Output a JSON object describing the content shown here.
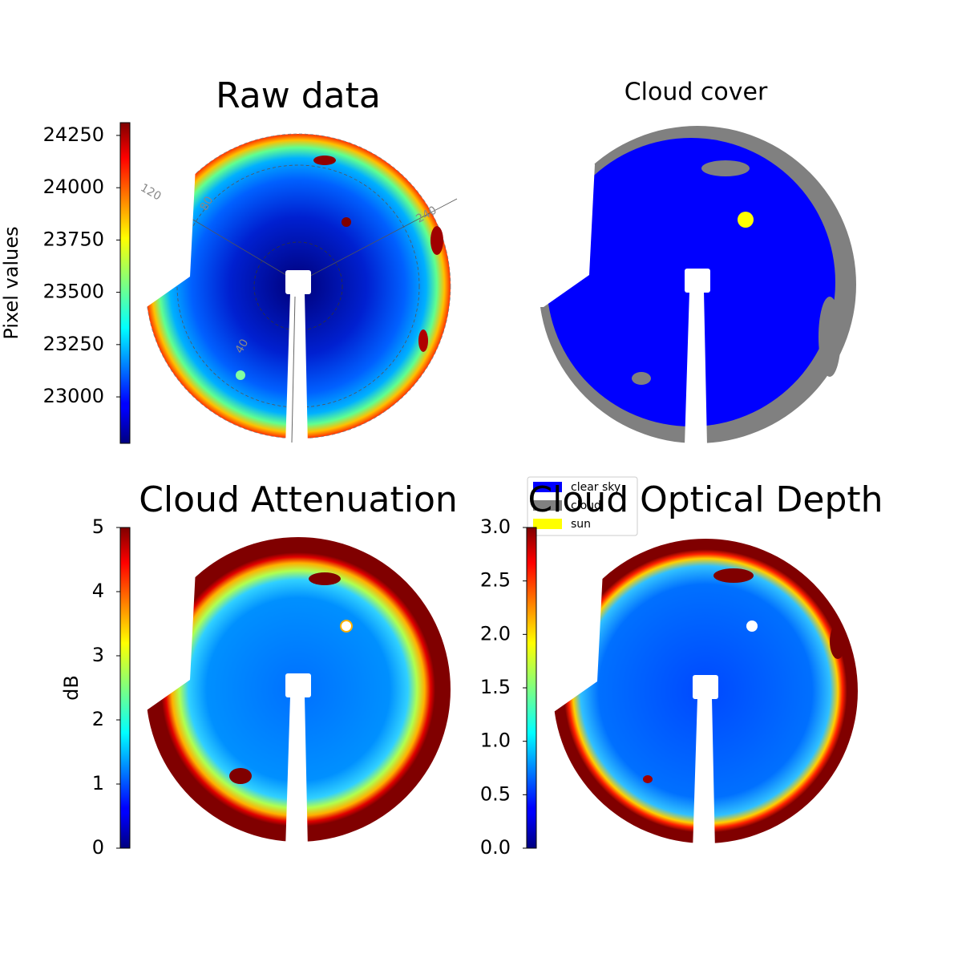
{
  "chart_data": [
    {
      "type": "image",
      "title": "Raw data",
      "colormap": "jet",
      "ylabel": "Pixel values",
      "ylim": [
        22778,
        24311
      ],
      "yticks": [
        23000,
        23250,
        23500,
        23750,
        24000,
        24250
      ],
      "polar_labels": [
        "120",
        "240",
        "80",
        "40"
      ]
    },
    {
      "type": "image",
      "title": "Cloud cover",
      "legend": [
        {
          "name": "clear sky",
          "color": "#0000ff"
        },
        {
          "name": "cloud",
          "color": "#808080"
        },
        {
          "name": "sun",
          "color": "#ffff00"
        }
      ]
    },
    {
      "type": "image",
      "title": "Cloud Attenuation",
      "colormap": "jet",
      "ylabel": "dB",
      "ylim": [
        0,
        5
      ],
      "yticks": [
        0,
        1,
        2,
        3,
        4,
        5
      ]
    },
    {
      "type": "image",
      "title": "Cloud Optical Depth",
      "colormap": "jet",
      "ylim": [
        0,
        3
      ],
      "yticks": [
        {
          "value": 0,
          "label": "0.0"
        },
        0.5,
        {
          "value": 1,
          "label": "1.0"
        },
        1.5,
        {
          "value": 2,
          "label": "2.0"
        },
        2.5,
        {
          "value": 3,
          "label": "3.0"
        }
      ]
    }
  ]
}
